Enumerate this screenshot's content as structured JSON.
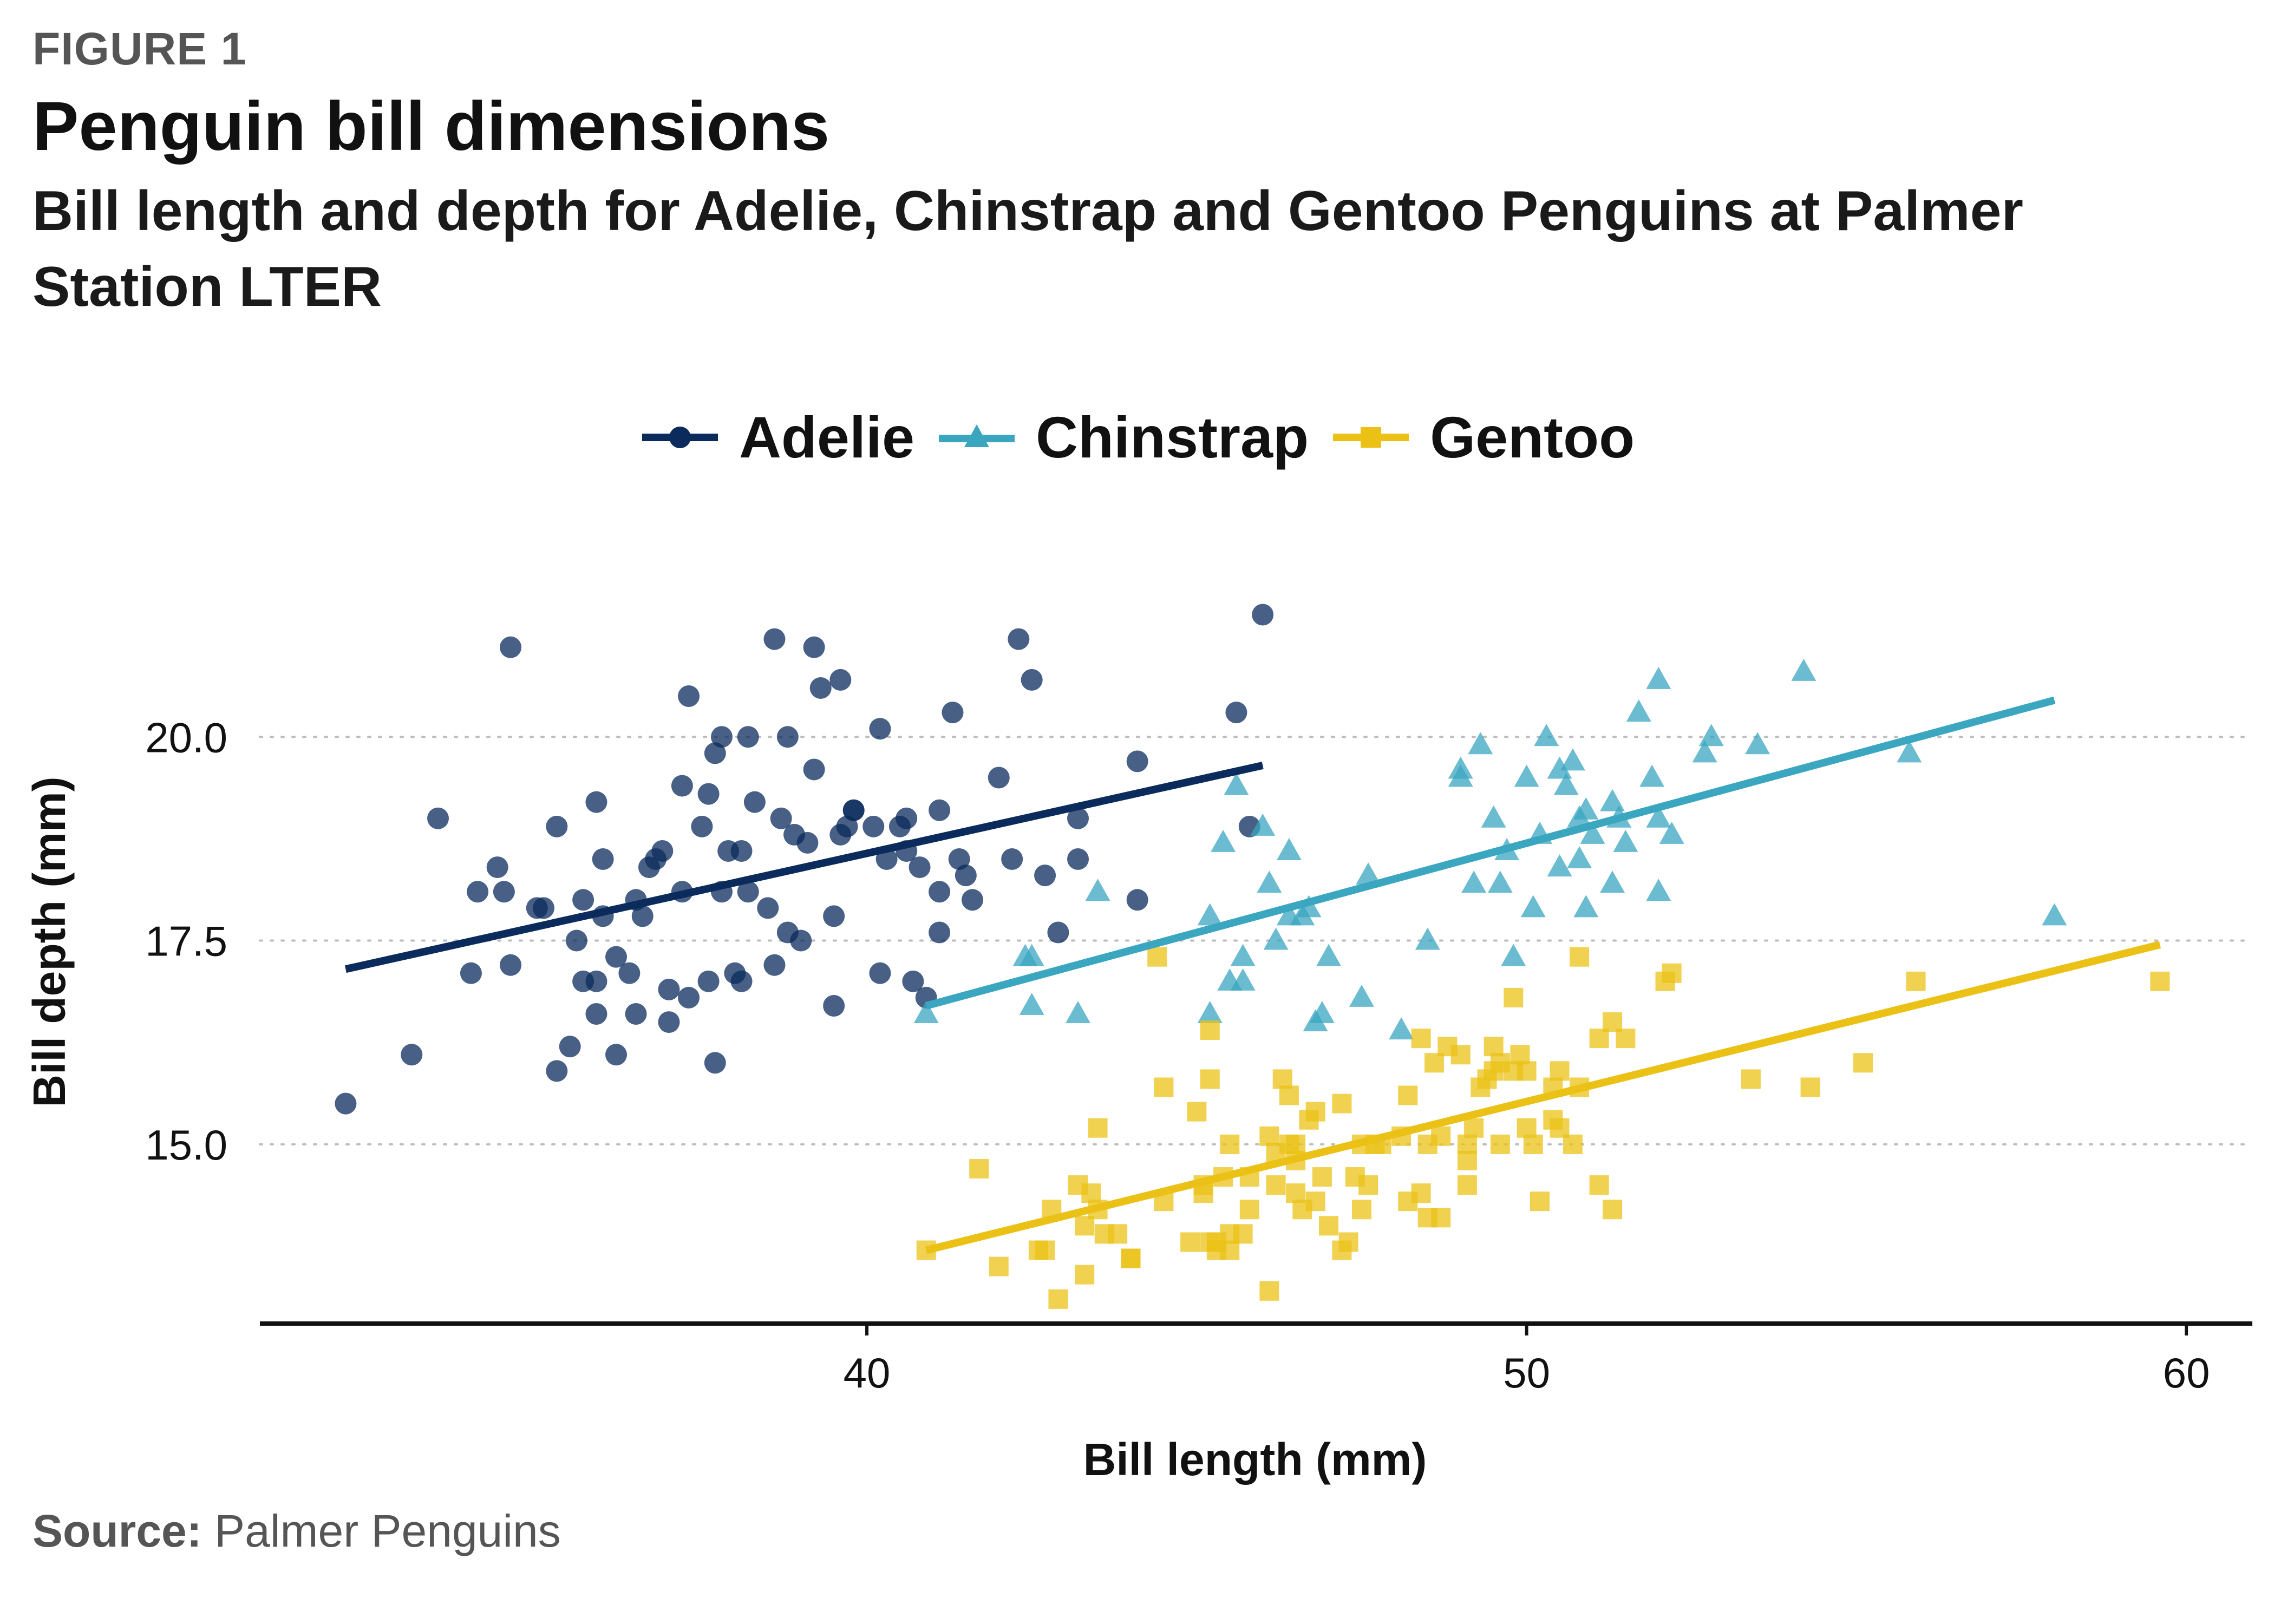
{
  "figure_label": "FIGURE 1",
  "title": "Penguin bill dimensions",
  "subtitle": "Bill length and depth for Adelie, Chinstrap and Gentoo Penguins at Palmer Station LTER",
  "source_label": "Source:",
  "source_text": "Palmer Penguins",
  "chart_data": {
    "type": "scatter",
    "xlabel": "Bill length (mm)",
    "ylabel": "Bill depth (mm)",
    "xlim": [
      30.8,
      61
    ],
    "ylim": [
      12.8,
      22.4
    ],
    "x_ticks": [
      40,
      50,
      60
    ],
    "x_tick_labels": [
      "40",
      "50",
      "60"
    ],
    "y_ticks": [
      15,
      17.5,
      20
    ],
    "y_tick_labels": [
      "15.0",
      "17.5",
      "20.0"
    ],
    "grid": "horizontal dotted",
    "legend_position": "top",
    "series": [
      {
        "name": "Adelie",
        "marker": "circle",
        "color": "#0b2b5c",
        "trend": [
          [
            32.1,
            17.15
          ],
          [
            46.0,
            19.65
          ]
        ],
        "points": [
          [
            32.1,
            15.5
          ],
          [
            33.1,
            16.1
          ],
          [
            33.5,
            19.0
          ],
          [
            34.0,
            17.1
          ],
          [
            34.1,
            18.1
          ],
          [
            34.4,
            18.4
          ],
          [
            34.5,
            18.1
          ],
          [
            34.6,
            21.1
          ],
          [
            34.6,
            17.2
          ],
          [
            35.0,
            17.9
          ],
          [
            35.1,
            17.9
          ],
          [
            35.3,
            15.9
          ],
          [
            35.3,
            18.9
          ],
          [
            35.5,
            16.2
          ],
          [
            35.6,
            17.5
          ],
          [
            35.7,
            18.0
          ],
          [
            35.7,
            17.0
          ],
          [
            35.9,
            17.0
          ],
          [
            35.9,
            19.2
          ],
          [
            35.9,
            16.6
          ],
          [
            36.0,
            18.5
          ],
          [
            36.0,
            17.8
          ],
          [
            36.2,
            16.1
          ],
          [
            36.2,
            17.3
          ],
          [
            36.4,
            17.1
          ],
          [
            36.5,
            16.6
          ],
          [
            36.5,
            18.0
          ],
          [
            36.6,
            17.8
          ],
          [
            36.7,
            18.4
          ],
          [
            36.8,
            18.5
          ],
          [
            36.9,
            18.6
          ],
          [
            37.0,
            16.9
          ],
          [
            37.0,
            16.5
          ],
          [
            37.2,
            18.1
          ],
          [
            37.2,
            19.4
          ],
          [
            37.3,
            20.5
          ],
          [
            37.3,
            16.8
          ],
          [
            37.5,
            18.9
          ],
          [
            37.6,
            17.0
          ],
          [
            37.6,
            19.3
          ],
          [
            37.7,
            19.8
          ],
          [
            37.7,
            16.0
          ],
          [
            37.8,
            20.0
          ],
          [
            37.8,
            18.1
          ],
          [
            37.9,
            18.6
          ],
          [
            38.0,
            17.1
          ],
          [
            38.1,
            18.6
          ],
          [
            38.1,
            17.0
          ],
          [
            38.2,
            18.1
          ],
          [
            38.2,
            20.0
          ],
          [
            38.3,
            19.2
          ],
          [
            38.5,
            17.9
          ],
          [
            38.6,
            21.2
          ],
          [
            38.6,
            17.2
          ],
          [
            38.7,
            19.0
          ],
          [
            38.8,
            17.6
          ],
          [
            38.8,
            20.0
          ],
          [
            38.9,
            18.8
          ],
          [
            39.0,
            17.5
          ],
          [
            39.1,
            18.7
          ],
          [
            39.2,
            19.6
          ],
          [
            39.2,
            21.1
          ],
          [
            39.3,
            20.6
          ],
          [
            39.5,
            16.7
          ],
          [
            39.5,
            17.8
          ],
          [
            39.6,
            20.7
          ],
          [
            39.6,
            18.8
          ],
          [
            39.7,
            18.9
          ],
          [
            39.8,
            19.1
          ],
          [
            39.8,
            19.1
          ],
          [
            40.1,
            18.9
          ],
          [
            40.2,
            17.1
          ],
          [
            40.2,
            20.1
          ],
          [
            40.3,
            18.5
          ],
          [
            40.5,
            18.9
          ],
          [
            40.6,
            19.0
          ],
          [
            40.6,
            18.6
          ],
          [
            40.7,
            17.0
          ],
          [
            40.8,
            18.4
          ],
          [
            40.9,
            16.8
          ],
          [
            41.1,
            17.6
          ],
          [
            41.1,
            18.1
          ],
          [
            41.1,
            19.1
          ],
          [
            41.3,
            20.3
          ],
          [
            41.4,
            18.5
          ],
          [
            41.5,
            18.3
          ],
          [
            41.6,
            18.0
          ],
          [
            42.0,
            19.5
          ],
          [
            42.2,
            18.5
          ],
          [
            42.3,
            21.2
          ],
          [
            42.5,
            20.7
          ],
          [
            42.7,
            18.3
          ],
          [
            42.9,
            17.6
          ],
          [
            43.2,
            19.0
          ],
          [
            43.2,
            18.5
          ],
          [
            44.1,
            19.7
          ],
          [
            44.1,
            18.0
          ],
          [
            45.6,
            20.3
          ],
          [
            45.8,
            18.9
          ],
          [
            46.0,
            21.5
          ]
        ]
      },
      {
        "name": "Chinstrap",
        "marker": "triangle",
        "color": "#3aa6c0",
        "trend": [
          [
            40.9,
            16.7
          ],
          [
            58.0,
            20.45
          ]
        ],
        "points": [
          [
            40.9,
            16.6
          ],
          [
            42.4,
            17.3
          ],
          [
            42.5,
            17.3
          ],
          [
            42.5,
            16.7
          ],
          [
            43.2,
            16.6
          ],
          [
            43.5,
            18.1
          ],
          [
            45.2,
            17.8
          ],
          [
            45.2,
            16.6
          ],
          [
            45.4,
            18.7
          ],
          [
            45.5,
            17.0
          ],
          [
            45.6,
            19.4
          ],
          [
            45.7,
            17.0
          ],
          [
            45.7,
            17.3
          ],
          [
            46.0,
            18.9
          ],
          [
            46.1,
            18.2
          ],
          [
            46.2,
            17.5
          ],
          [
            46.4,
            18.6
          ],
          [
            46.4,
            17.8
          ],
          [
            46.6,
            17.8
          ],
          [
            46.7,
            17.9
          ],
          [
            46.8,
            16.5
          ],
          [
            46.9,
            16.6
          ],
          [
            47.0,
            17.3
          ],
          [
            47.5,
            16.8
          ],
          [
            47.6,
            18.3
          ],
          [
            48.1,
            16.4
          ],
          [
            48.5,
            17.5
          ],
          [
            49.0,
            19.5
          ],
          [
            49.0,
            19.6
          ],
          [
            49.2,
            18.2
          ],
          [
            49.3,
            19.9
          ],
          [
            49.5,
            19.0
          ],
          [
            49.6,
            18.2
          ],
          [
            49.7,
            18.6
          ],
          [
            49.8,
            17.3
          ],
          [
            50.0,
            19.5
          ],
          [
            50.1,
            17.9
          ],
          [
            50.2,
            18.8
          ],
          [
            50.3,
            20.0
          ],
          [
            50.5,
            18.4
          ],
          [
            50.5,
            19.6
          ],
          [
            50.6,
            19.4
          ],
          [
            50.7,
            19.7
          ],
          [
            50.8,
            18.5
          ],
          [
            50.8,
            19.0
          ],
          [
            50.9,
            17.9
          ],
          [
            50.9,
            19.1
          ],
          [
            51.0,
            18.8
          ],
          [
            51.3,
            19.2
          ],
          [
            51.3,
            18.2
          ],
          [
            51.4,
            19.0
          ],
          [
            51.5,
            18.7
          ],
          [
            51.7,
            20.3
          ],
          [
            51.9,
            19.5
          ],
          [
            52.0,
            18.1
          ],
          [
            52.0,
            19.0
          ],
          [
            52.0,
            20.7
          ],
          [
            52.2,
            18.8
          ],
          [
            52.7,
            19.8
          ],
          [
            52.8,
            20.0
          ],
          [
            53.5,
            19.9
          ],
          [
            54.2,
            20.8
          ],
          [
            55.8,
            19.8
          ],
          [
            58.0,
            17.8
          ]
        ]
      },
      {
        "name": "Gentoo",
        "marker": "square",
        "color": "#ebc116",
        "trend": [
          [
            40.9,
            13.7
          ],
          [
            59.6,
            17.45
          ]
        ],
        "points": [
          [
            40.9,
            13.7
          ],
          [
            41.7,
            14.7
          ],
          [
            42.0,
            13.5
          ],
          [
            42.6,
            13.7
          ],
          [
            42.7,
            13.7
          ],
          [
            42.8,
            14.2
          ],
          [
            42.9,
            13.1
          ],
          [
            43.2,
            14.5
          ],
          [
            43.3,
            14.0
          ],
          [
            43.3,
            13.4
          ],
          [
            43.4,
            14.4
          ],
          [
            43.5,
            14.2
          ],
          [
            43.5,
            15.2
          ],
          [
            43.6,
            13.9
          ],
          [
            43.8,
            13.9
          ],
          [
            44.0,
            13.6
          ],
          [
            44.4,
            17.3
          ],
          [
            44.5,
            14.3
          ],
          [
            44.5,
            15.7
          ],
          [
            44.9,
            13.8
          ],
          [
            45.0,
            15.4
          ],
          [
            45.1,
            14.5
          ],
          [
            45.1,
            14.4
          ],
          [
            45.2,
            16.4
          ],
          [
            45.2,
            15.8
          ],
          [
            45.2,
            13.8
          ],
          [
            45.3,
            13.7
          ],
          [
            45.4,
            14.6
          ],
          [
            45.5,
            13.7
          ],
          [
            45.5,
            15.0
          ],
          [
            45.5,
            13.9
          ],
          [
            45.7,
            13.9
          ],
          [
            45.8,
            14.6
          ],
          [
            45.8,
            14.2
          ],
          [
            46.1,
            15.1
          ],
          [
            46.1,
            13.2
          ],
          [
            46.2,
            14.9
          ],
          [
            46.2,
            14.5
          ],
          [
            46.3,
            15.8
          ],
          [
            46.4,
            15.0
          ],
          [
            46.4,
            15.6
          ],
          [
            46.5,
            14.4
          ],
          [
            46.5,
            14.8
          ],
          [
            46.6,
            14.2
          ],
          [
            46.7,
            15.3
          ],
          [
            46.8,
            14.3
          ],
          [
            46.8,
            15.4
          ],
          [
            46.9,
            14.6
          ],
          [
            47.2,
            13.7
          ],
          [
            47.2,
            15.5
          ],
          [
            47.3,
            13.8
          ],
          [
            47.4,
            14.6
          ],
          [
            47.5,
            14.2
          ],
          [
            47.5,
            15.0
          ],
          [
            47.6,
            14.5
          ],
          [
            47.7,
            15.0
          ],
          [
            47.8,
            15.0
          ],
          [
            48.1,
            15.1
          ],
          [
            48.2,
            14.3
          ],
          [
            48.2,
            15.6
          ],
          [
            48.4,
            14.4
          ],
          [
            48.4,
            16.3
          ],
          [
            48.5,
            15.0
          ],
          [
            48.5,
            14.1
          ],
          [
            48.6,
            16.0
          ],
          [
            48.7,
            14.1
          ],
          [
            48.7,
            15.1
          ],
          [
            48.8,
            16.2
          ],
          [
            49.0,
            16.1
          ],
          [
            49.1,
            14.8
          ],
          [
            49.1,
            15.0
          ],
          [
            49.2,
            15.2
          ],
          [
            49.3,
            15.7
          ],
          [
            49.4,
            15.8
          ],
          [
            49.5,
            15.9
          ],
          [
            49.5,
            16.2
          ],
          [
            49.6,
            15.0
          ],
          [
            49.6,
            16.0
          ],
          [
            49.8,
            15.9
          ],
          [
            49.8,
            16.8
          ],
          [
            49.9,
            16.1
          ],
          [
            50.0,
            15.2
          ],
          [
            50.0,
            15.9
          ],
          [
            50.1,
            15.0
          ],
          [
            50.2,
            14.3
          ],
          [
            50.4,
            15.3
          ],
          [
            50.4,
            15.7
          ],
          [
            50.5,
            15.9
          ],
          [
            50.5,
            15.2
          ],
          [
            50.7,
            15.0
          ],
          [
            50.8,
            15.7
          ],
          [
            50.8,
            17.3
          ],
          [
            51.1,
            14.5
          ],
          [
            51.1,
            16.3
          ],
          [
            51.3,
            16.5
          ],
          [
            51.5,
            16.3
          ],
          [
            52.1,
            17.0
          ],
          [
            52.2,
            17.1
          ],
          [
            53.4,
            15.8
          ],
          [
            54.3,
            15.7
          ],
          [
            55.1,
            16.0
          ],
          [
            55.9,
            17.0
          ],
          [
            59.6,
            17.0
          ],
          [
            51.3,
            14.2
          ],
          [
            49.1,
            14.5
          ],
          [
            46.5,
            15.0
          ],
          [
            45.3,
            13.8
          ],
          [
            44.0,
            13.6
          ],
          [
            47.0,
            14.0
          ]
        ]
      }
    ]
  }
}
